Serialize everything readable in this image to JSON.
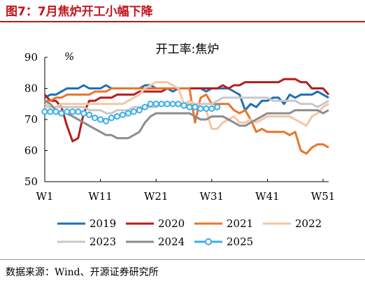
{
  "figure": {
    "title": "图7：7月焦炉开工小幅下降",
    "source": "数据来源：Wind、开源证券研究所"
  },
  "chart_data": {
    "type": "line",
    "title": "开工率:焦炉",
    "ylabel": "%",
    "xlabel": "",
    "ylim": [
      50,
      90
    ],
    "yticks": [
      50,
      60,
      70,
      80,
      90
    ],
    "xlim": [
      1,
      52
    ],
    "xticks": [
      {
        "value": 1,
        "label": "W1"
      },
      {
        "value": 11,
        "label": "W11"
      },
      {
        "value": 21,
        "label": "W21"
      },
      {
        "value": 31,
        "label": "W31"
      },
      {
        "value": 41,
        "label": "W41"
      },
      {
        "value": 51,
        "label": "W51"
      }
    ],
    "grid": false,
    "legend_position": "bottom",
    "series": [
      {
        "name": "2019",
        "color": "#1f6fb4",
        "marker": "none",
        "values": [
          77,
          78,
          78,
          79,
          80,
          80,
          80,
          81,
          80,
          80,
          80,
          81,
          80,
          80,
          80,
          80,
          80,
          80,
          81,
          81,
          80,
          80,
          80,
          79,
          80,
          80,
          80,
          80,
          80,
          79,
          80,
          80,
          80,
          80,
          79,
          78,
          73,
          75,
          74,
          76,
          76,
          77,
          77,
          75,
          78,
          77,
          78,
          78,
          78,
          79,
          78,
          77
        ]
      },
      {
        "name": "2020",
        "color": "#b71c1c",
        "marker": "none",
        "values": [
          78,
          76,
          76,
          74,
          68,
          63,
          64,
          72,
          76,
          76,
          77,
          77,
          77,
          78,
          78,
          78,
          78,
          79,
          79,
          79,
          79,
          79,
          80,
          80,
          80,
          80,
          80,
          80,
          80,
          80,
          80,
          80,
          81,
          80,
          81,
          81,
          82,
          82,
          82,
          82,
          82,
          82,
          82,
          83,
          83,
          83,
          82,
          82,
          80,
          80,
          80,
          78
        ]
      },
      {
        "name": "2021",
        "color": "#e9742a",
        "marker": "none",
        "values": [
          76,
          76,
          77,
          77,
          78,
          78,
          78,
          78,
          78,
          79,
          79,
          79,
          80,
          80,
          80,
          80,
          80,
          80,
          80,
          80,
          80,
          80,
          80,
          80,
          80,
          80,
          80,
          69,
          77,
          78,
          75,
          75,
          75,
          75,
          73,
          72,
          73,
          70,
          66,
          67,
          66,
          66,
          66,
          66,
          65,
          66,
          60,
          59,
          61,
          62,
          62,
          61
        ]
      },
      {
        "name": "2022",
        "color": "#f4c6a4",
        "marker": "none",
        "values": [
          74,
          74,
          74,
          75,
          75,
          75,
          75,
          75,
          75,
          75,
          75,
          75,
          75,
          75,
          75,
          76,
          77,
          78,
          80,
          81,
          82,
          82,
          82,
          81,
          80,
          75,
          76,
          75,
          74,
          73,
          67,
          67,
          69,
          70,
          71,
          69,
          69,
          70,
          69,
          70,
          71,
          71,
          71,
          71,
          71,
          70,
          69,
          68,
          71,
          72,
          74,
          75
        ]
      },
      {
        "name": "2023",
        "color": "#c8c8c8",
        "marker": "none",
        "values": [
          75,
          74,
          74,
          74,
          74,
          74,
          74,
          74,
          73,
          73,
          73,
          72,
          72,
          73,
          73,
          73,
          74,
          74,
          74,
          74,
          74,
          75,
          75,
          75,
          75,
          75,
          75,
          75,
          75,
          75,
          75,
          76,
          77,
          77,
          77,
          77,
          77,
          77,
          77,
          77,
          77,
          76,
          76,
          76,
          76,
          76,
          75,
          75,
          75,
          74,
          75,
          76
        ]
      },
      {
        "name": "2024",
        "color": "#8c8c8c",
        "marker": "none",
        "values": [
          76,
          75,
          73,
          72,
          72,
          71,
          70,
          69,
          68,
          67,
          66,
          65,
          65,
          64,
          64,
          64,
          65,
          66,
          69,
          71,
          72,
          72,
          72,
          72,
          72,
          72,
          72,
          71,
          70,
          70,
          71,
          71,
          71,
          70,
          69,
          68,
          68,
          69,
          70,
          71,
          72,
          72,
          72,
          72,
          72,
          73,
          73,
          73,
          73,
          73,
          72,
          73
        ]
      },
      {
        "name": "2025",
        "color": "#3aaee6",
        "marker": "circle",
        "values": [
          72.5,
          72.5,
          72.5,
          72,
          72.5,
          72.5,
          72.5,
          72,
          71.5,
          70.5,
          70,
          69.5,
          70.5,
          71,
          71.5,
          72,
          72.5,
          73,
          74,
          75,
          75,
          75,
          75,
          75,
          75,
          74.5,
          74,
          74,
          73.5,
          73.5,
          73.5,
          74
        ]
      }
    ]
  }
}
